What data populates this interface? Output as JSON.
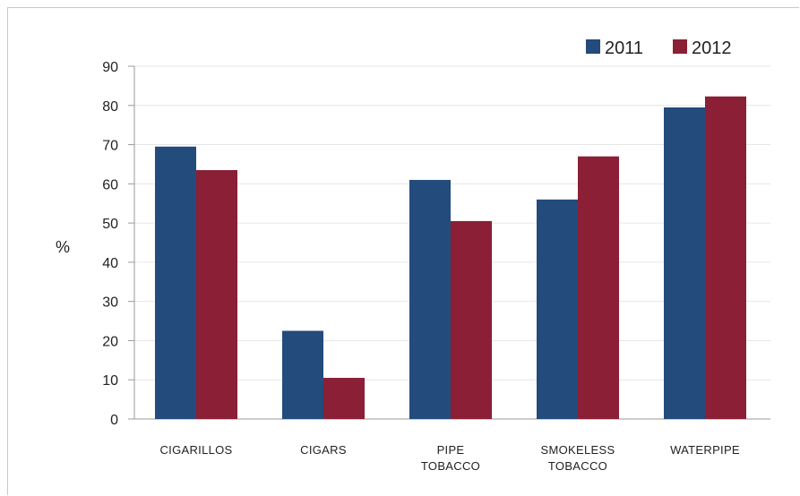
{
  "chart_data": {
    "type": "bar",
    "categories": [
      [
        "CIGARILLOS"
      ],
      [
        "CIGARS"
      ],
      [
        "PIPE",
        "TOBACCO"
      ],
      [
        "SMOKELESS",
        "TOBACCO"
      ],
      [
        "WATERPIPE"
      ]
    ],
    "series": [
      {
        "name": "2011",
        "color": "#234b7c",
        "values": [
          69.5,
          22.5,
          61,
          56,
          79.5
        ]
      },
      {
        "name": "2012",
        "color": "#8a1f36",
        "values": [
          63.5,
          10.5,
          50.5,
          67,
          82.3
        ]
      }
    ],
    "ylabel": "%",
    "ylim": [
      0,
      90
    ],
    "yticks": [
      0,
      10,
      20,
      30,
      40,
      50,
      60,
      70,
      80,
      90
    ],
    "grid": true,
    "legend": "top-right"
  }
}
